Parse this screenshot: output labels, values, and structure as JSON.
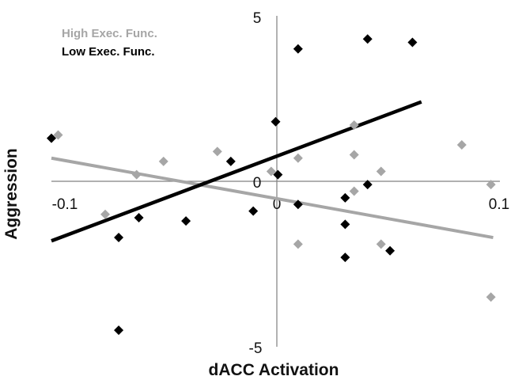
{
  "chart_data": {
    "type": "scatter",
    "xlabel": "dACC Activation",
    "ylabel": "Aggression",
    "xlim": [
      -0.1,
      0.1
    ],
    "ylim": [
      -5,
      5
    ],
    "x_ticks": [
      "-0.1",
      "0",
      "0.1"
    ],
    "y_ticks": [
      "5",
      "0",
      "-5"
    ],
    "grid": false,
    "legend_position": "top-left",
    "series": [
      {
        "name": "High Exec. Func.",
        "color": "#a6a6a6",
        "points": [
          [
            -0.097,
            1.4
          ],
          [
            -0.076,
            -1.0
          ],
          [
            -0.062,
            0.2
          ],
          [
            -0.05,
            0.6
          ],
          [
            -0.026,
            0.9
          ],
          [
            -0.002,
            0.3
          ],
          [
            0.01,
            0.7
          ],
          [
            0.01,
            -1.9
          ],
          [
            0.035,
            1.7
          ],
          [
            0.035,
            0.8
          ],
          [
            0.035,
            -0.3
          ],
          [
            0.047,
            0.3
          ],
          [
            0.047,
            -1.9
          ],
          [
            0.083,
            1.1
          ],
          [
            0.096,
            -0.1
          ],
          [
            0.096,
            -3.5
          ]
        ],
        "trend": [
          [
            -0.1,
            0.7
          ],
          [
            0.097,
            -1.7
          ]
        ]
      },
      {
        "name": "Low Exec. Func.",
        "color": "#000000",
        "points": [
          [
            -0.1,
            1.3
          ],
          [
            -0.07,
            -1.7
          ],
          [
            -0.061,
            -1.1
          ],
          [
            -0.04,
            -1.2
          ],
          [
            -0.02,
            0.6
          ],
          [
            -0.01,
            -0.9
          ],
          [
            0.0,
            1.8
          ],
          [
            0.001,
            0.2
          ],
          [
            0.01,
            4.0
          ],
          [
            0.01,
            -0.7
          ],
          [
            0.031,
            -0.5
          ],
          [
            0.031,
            -1.3
          ],
          [
            0.031,
            -2.3
          ],
          [
            0.041,
            -0.1
          ],
          [
            0.041,
            4.3
          ],
          [
            0.051,
            -2.1
          ],
          [
            0.061,
            4.2
          ],
          [
            -0.07,
            -4.5
          ]
        ],
        "trend": [
          [
            -0.1,
            -1.8
          ],
          [
            0.065,
            2.4
          ]
        ]
      }
    ]
  }
}
